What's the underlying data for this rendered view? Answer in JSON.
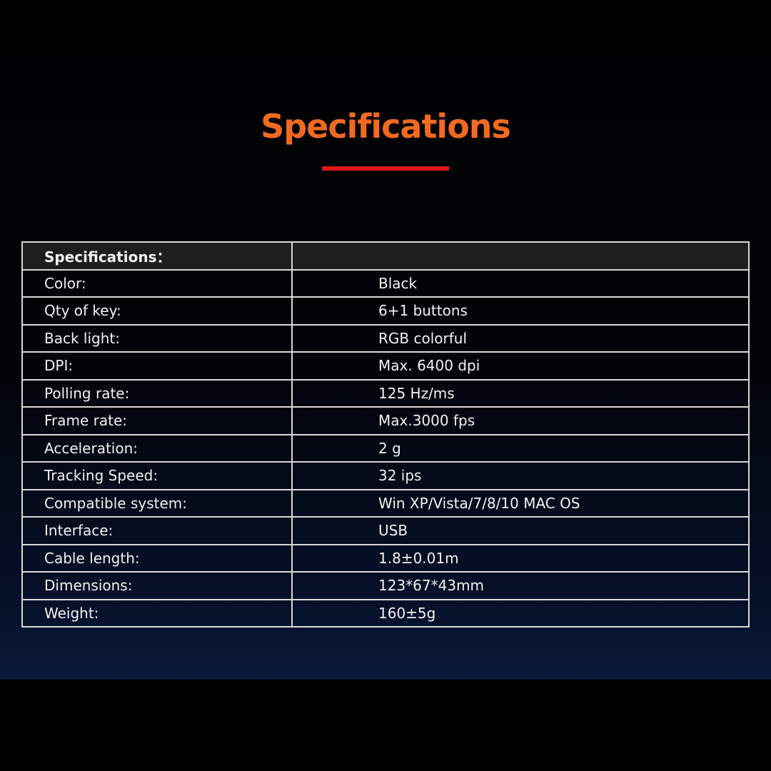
{
  "title": "Specifications",
  "accent_color": "#f06a22",
  "underline_color": "#e01818",
  "table": {
    "header": "Specifications：",
    "rows": [
      {
        "label": "Color:",
        "value": "Black"
      },
      {
        "label": "Qty of key:",
        "value": "6+1 buttons"
      },
      {
        "label": "Back light:",
        "value": "RGB colorful"
      },
      {
        "label": "DPI:",
        "value": "Max. 6400 dpi"
      },
      {
        "label": "Polling rate:",
        "value": "125 Hz/ms"
      },
      {
        "label": "Frame rate:",
        "value": "Max.3000 fps"
      },
      {
        "label": "Acceleration:",
        "value": "2 g"
      },
      {
        "label": "Tracking Speed:",
        "value": "32 ips"
      },
      {
        "label": "Compatible system:",
        "value": "Win XP/Vista/7/8/10 MAC OS"
      },
      {
        "label": "Interface:",
        "value": "USB"
      },
      {
        "label": "Cable length:",
        "value": "1.8±0.01m"
      },
      {
        "label": "Dimensions:",
        "value": "123*67*43mm"
      },
      {
        "label": "Weight:",
        "value": "160±5g"
      }
    ]
  }
}
